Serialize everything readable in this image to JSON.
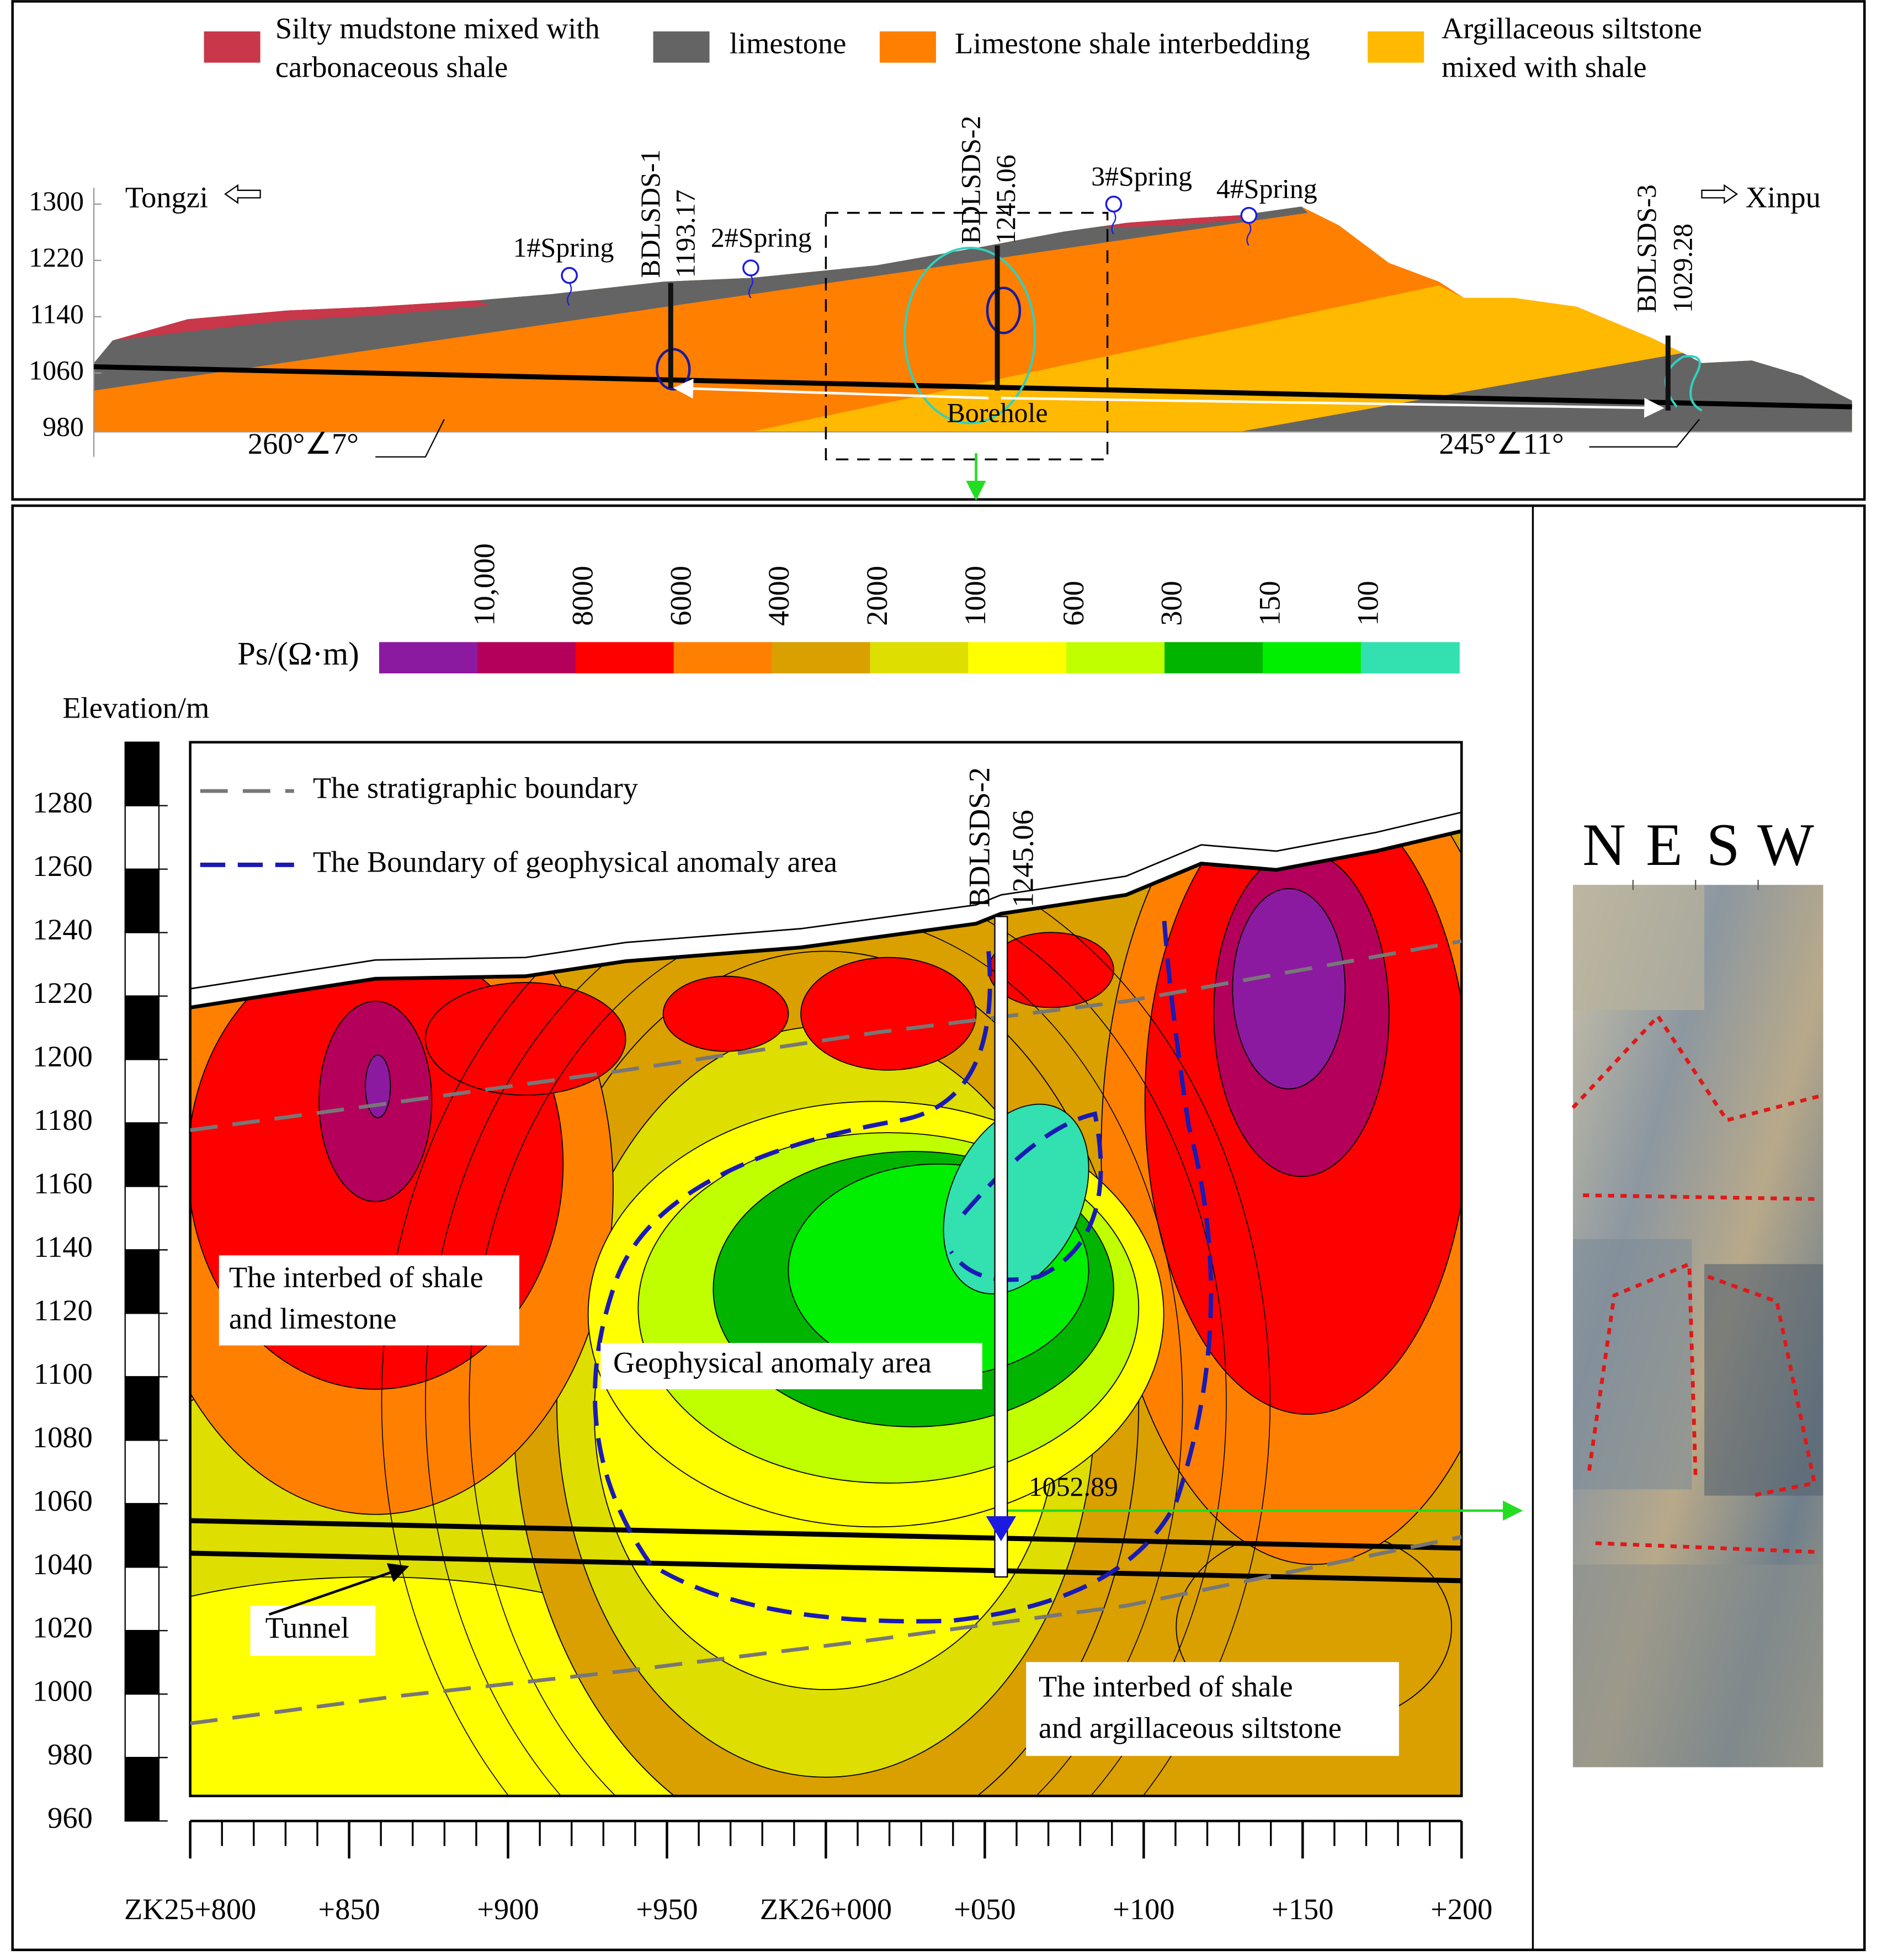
{
  "chart_data": [
    {
      "type": "profile",
      "legend": [
        {
          "label_lines": [
            "Silty mudstone mixed with",
            "carbonaceous shale"
          ],
          "color": "#c8374a"
        },
        {
          "label_lines": [
            "limestone"
          ],
          "color": "#646464"
        },
        {
          "label_lines": [
            "Limestone shale interbedding"
          ],
          "color": "#ff7f00"
        },
        {
          "label_lines": [
            "Argillaceous siltstone",
            "mixed with shale"
          ],
          "color": "#ffb900"
        }
      ],
      "ylim": [
        980,
        1300
      ],
      "yticks": [
        980,
        1060,
        1140,
        1220,
        1300
      ],
      "places": [
        "Tongzi",
        "Xinpu"
      ],
      "springs": [
        "1#Spring",
        "2#Spring",
        "3#Spring",
        "4#Spring"
      ],
      "boreholes": [
        {
          "name": "BDLSDS-1",
          "elevation": 1193.17
        },
        {
          "name": "BDLSDS-2",
          "elevation": 1245.06
        },
        {
          "name": "BDLSDS-3",
          "elevation": 1029.28
        }
      ],
      "borehole_label": "Borehole",
      "attitudes": [
        "260°∠7°",
        "245°∠11°"
      ]
    },
    {
      "type": "contour",
      "colorbar": {
        "title": "Ps/(Ω·m)",
        "colors": [
          "#8b1aa0",
          "#b4005a",
          "#ff0000",
          "#ff8000",
          "#daa000",
          "#dede00",
          "#ffff00",
          "#bfff00",
          "#00b400",
          "#00ee00",
          "#33e0b0"
        ],
        "ticks": [
          {
            "value": 10000,
            "label": "10,000"
          },
          8000,
          6000,
          4000,
          2000,
          1000,
          600,
          300,
          150,
          100
        ]
      },
      "ylabel": "Elevation/m",
      "ylim": [
        960,
        1300
      ],
      "yticks": [
        960,
        980,
        1000,
        1020,
        1040,
        1060,
        1080,
        1100,
        1120,
        1140,
        1160,
        1180,
        1200,
        1220,
        1240,
        1260,
        1280
      ],
      "xlim": [
        25800,
        26200
      ],
      "xticks": [
        {
          "value": 25800,
          "label": "ZK25+800"
        },
        {
          "value": 25850,
          "label": "+850"
        },
        {
          "value": 25900,
          "label": "+900"
        },
        {
          "value": 25950,
          "label": "+950"
        },
        {
          "value": 26000,
          "label": "ZK26+000"
        },
        {
          "value": 26050,
          "label": "+050"
        },
        {
          "value": 26100,
          "label": "+100"
        },
        {
          "value": 26150,
          "label": "+150"
        },
        {
          "value": 26200,
          "label": "+200"
        }
      ],
      "legend": [
        "The stratigraphic boundary",
        "The Boundary of geophysical anomaly area"
      ],
      "borehole": {
        "name": "BDLSDS-2",
        "elevation": 1245.06,
        "water_level": 1052.89
      },
      "annotations": [
        [
          "The interbed of shale",
          "and limestone"
        ],
        [
          "Geophysical anomaly area"
        ],
        [
          "Tunnel"
        ],
        [
          "The interbed of shale",
          "and argillaceous siltstone"
        ]
      ],
      "compass": [
        "N",
        "E",
        "S",
        "W"
      ]
    }
  ]
}
